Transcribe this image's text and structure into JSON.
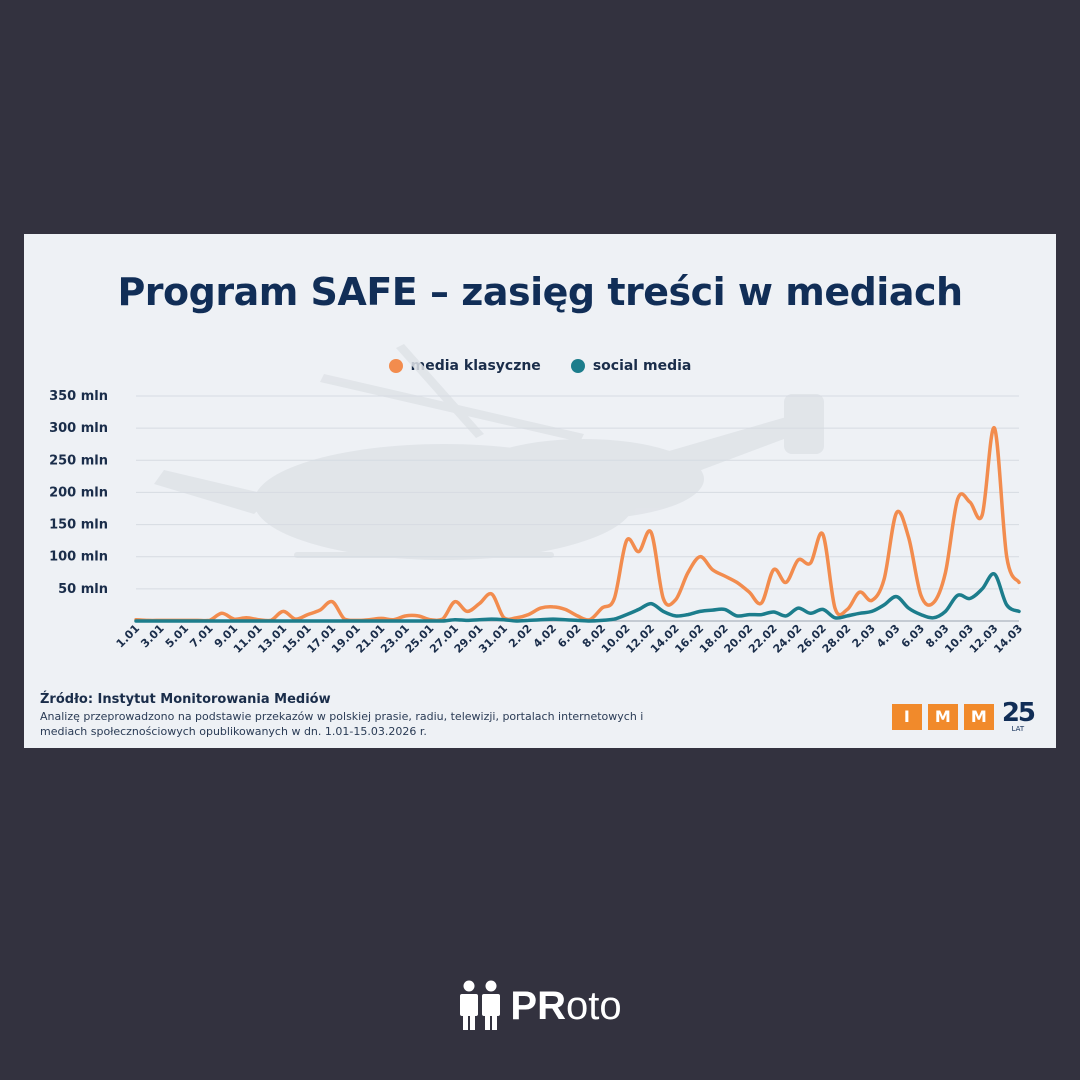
{
  "chart_data": {
    "type": "line",
    "title": "Program SAFE – zasięg treści w mediach",
    "legend_position": "top",
    "grid": true,
    "ylim": [
      0,
      350
    ],
    "y_ticks": [
      {
        "value": 50,
        "label": "50 mln"
      },
      {
        "value": 100,
        "label": "100 mln"
      },
      {
        "value": 150,
        "label": "150 mln"
      },
      {
        "value": 200,
        "label": "200 mln"
      },
      {
        "value": 250,
        "label": "250 mln"
      },
      {
        "value": 300,
        "label": "300 mln"
      },
      {
        "value": 350,
        "label": "350 mln"
      }
    ],
    "x_ticks": [
      "1.01",
      "3.01",
      "5.01",
      "7.01",
      "9.01",
      "11.01",
      "13.01",
      "15.01",
      "17.01",
      "19.01",
      "21.01",
      "23.01",
      "25.01",
      "27.01",
      "29.01",
      "31.01",
      "2.02",
      "4.02",
      "6.02",
      "8.02",
      "10.02",
      "12.02",
      "14.02",
      "16.02",
      "18.02",
      "20.02",
      "22.02",
      "24.02",
      "26.02",
      "28.02",
      "2.03",
      "4.03",
      "6.03",
      "8.03",
      "10.03",
      "12.03",
      "14.03"
    ],
    "series": [
      {
        "name": "media klasyczne",
        "color": "#f28c4e",
        "values": [
          2,
          1,
          1,
          1,
          1,
          1,
          1,
          12,
          3,
          5,
          2,
          1,
          15,
          3,
          10,
          17,
          30,
          3,
          1,
          2,
          4,
          2,
          8,
          8,
          2,
          3,
          30,
          15,
          27,
          42,
          5,
          5,
          10,
          20,
          22,
          18,
          8,
          2,
          20,
          35,
          125,
          108,
          138,
          35,
          33,
          75,
          100,
          80,
          70,
          60,
          45,
          28,
          80,
          60,
          95,
          90,
          135,
          20,
          18,
          45,
          32,
          65,
          168,
          130,
          40,
          28,
          75,
          190,
          185,
          165,
          300,
          100,
          60
        ]
      },
      {
        "name": "social media",
        "color": "#1c7d8c",
        "values": [
          0,
          0,
          0,
          0,
          0,
          0,
          0,
          0,
          0,
          0,
          0,
          0,
          0,
          0,
          0,
          0,
          0,
          0,
          0,
          0,
          0,
          0,
          0,
          0,
          0,
          0,
          2,
          1,
          2,
          3,
          2,
          0,
          1,
          2,
          3,
          2,
          1,
          0,
          1,
          3,
          10,
          18,
          27,
          15,
          8,
          10,
          15,
          17,
          18,
          8,
          10,
          10,
          14,
          8,
          20,
          12,
          18,
          5,
          8,
          12,
          15,
          25,
          38,
          20,
          10,
          5,
          15,
          40,
          35,
          50,
          73,
          25,
          15
        ]
      }
    ]
  },
  "source": {
    "title": "Źródło: Instytut Monitorowania Mediów",
    "note": "Analizę przeprowadzono na podstawie przekazów w polskiej prasie, radiu, telewizji, portalach internetowych i mediach społecznościowych opublikowanych w dn. 1.01-15.03.2026 r."
  },
  "logo": {
    "letters": [
      "I",
      "M",
      "M"
    ],
    "years": "25",
    "years_label": "LAT",
    "color": "#f18a2b"
  },
  "brand": {
    "text_bold": "PR",
    "text_regular": "oto",
    "color": "#ffffff"
  }
}
